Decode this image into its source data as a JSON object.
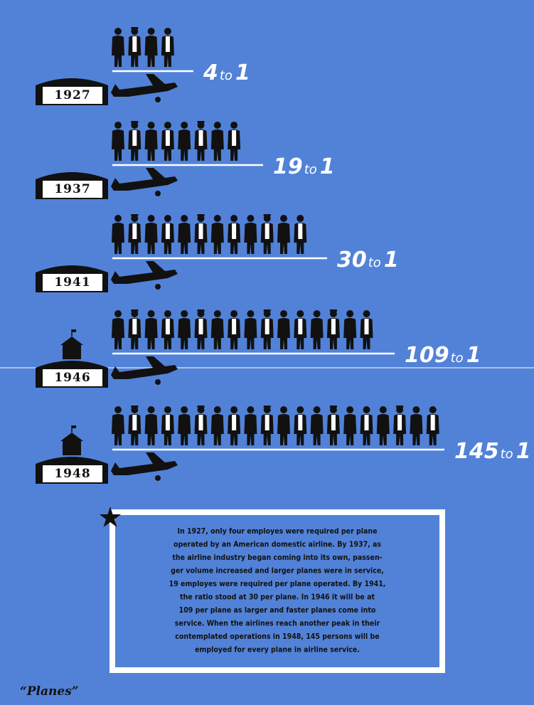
{
  "rows": [
    {
      "year": "1927",
      "left": "4",
      "word": "to",
      "right": "1"
    },
    {
      "year": "1937",
      "left": "19",
      "word": "to",
      "right": "1"
    },
    {
      "year": "1941",
      "left": "30",
      "word": "to",
      "right": "1"
    },
    {
      "year": "1946",
      "left": "109",
      "word": "to",
      "right": "1"
    },
    {
      "year": "1948",
      "left": "145",
      "word": "to",
      "right": "1"
    }
  ],
  "note": {
    "lines": [
      "In 1927, only four employes were required per plane",
      "operated by an American domestic airline. By 1937, as",
      "the airline industry began coming into its own, passen-",
      "ger volume increased and larger planes were in service,",
      "19 employes were required per plane operated. By 1941,",
      "the ratio stood at 30 per plane. In 1946 it will be at",
      "109 per plane as larger and faster planes come into",
      "service. When the airlines reach another peak in their",
      "contemplated operations in 1948, 145 persons will be",
      "employed for every plane in airline service."
    ]
  },
  "caption": "“Planes”"
}
